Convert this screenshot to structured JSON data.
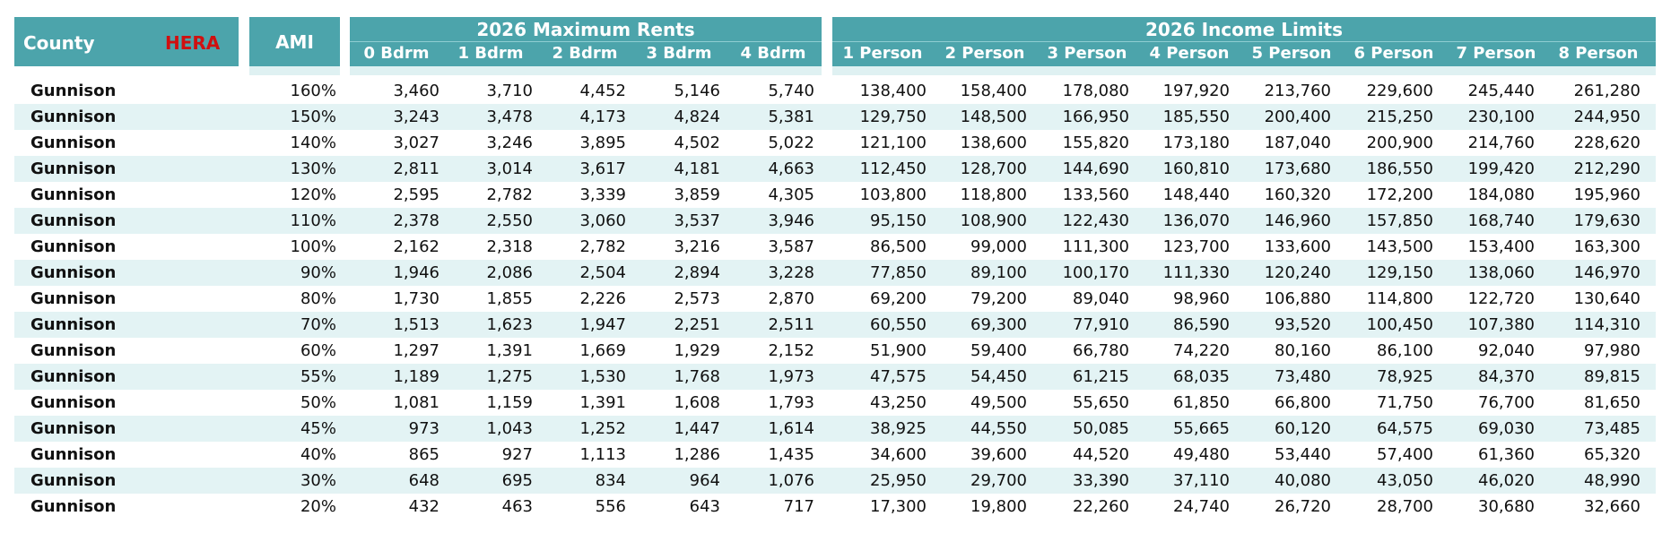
{
  "header": {
    "county_label": "County",
    "hera_label": "HERA",
    "ami_label": "AMI",
    "rents_title": "2026 Maximum Rents",
    "income_title": "2026 Income Limits",
    "rent_columns": [
      "0 Bdrm",
      "1 Bdrm",
      "2 Bdrm",
      "3 Bdrm",
      "4 Bdrm"
    ],
    "income_columns": [
      "1 Person",
      "2 Person",
      "3 Person",
      "4 Person",
      "5 Person",
      "6 Person",
      "7 Person",
      "8 Person"
    ]
  },
  "colors": {
    "header_bg": "#4ca4ab",
    "row_alt_bg": "#e3f3f4",
    "hera_text": "#d01010"
  },
  "rows": [
    {
      "county": "Gunnison",
      "ami": "160%",
      "rents": [
        "3,460",
        "3,710",
        "4,452",
        "5,146",
        "5,740"
      ],
      "income": [
        "138,400",
        "158,400",
        "178,080",
        "197,920",
        "213,760",
        "229,600",
        "245,440",
        "261,280"
      ]
    },
    {
      "county": "Gunnison",
      "ami": "150%",
      "rents": [
        "3,243",
        "3,478",
        "4,173",
        "4,824",
        "5,381"
      ],
      "income": [
        "129,750",
        "148,500",
        "166,950",
        "185,550",
        "200,400",
        "215,250",
        "230,100",
        "244,950"
      ]
    },
    {
      "county": "Gunnison",
      "ami": "140%",
      "rents": [
        "3,027",
        "3,246",
        "3,895",
        "4,502",
        "5,022"
      ],
      "income": [
        "121,100",
        "138,600",
        "155,820",
        "173,180",
        "187,040",
        "200,900",
        "214,760",
        "228,620"
      ]
    },
    {
      "county": "Gunnison",
      "ami": "130%",
      "rents": [
        "2,811",
        "3,014",
        "3,617",
        "4,181",
        "4,663"
      ],
      "income": [
        "112,450",
        "128,700",
        "144,690",
        "160,810",
        "173,680",
        "186,550",
        "199,420",
        "212,290"
      ]
    },
    {
      "county": "Gunnison",
      "ami": "120%",
      "rents": [
        "2,595",
        "2,782",
        "3,339",
        "3,859",
        "4,305"
      ],
      "income": [
        "103,800",
        "118,800",
        "133,560",
        "148,440",
        "160,320",
        "172,200",
        "184,080",
        "195,960"
      ]
    },
    {
      "county": "Gunnison",
      "ami": "110%",
      "rents": [
        "2,378",
        "2,550",
        "3,060",
        "3,537",
        "3,946"
      ],
      "income": [
        "95,150",
        "108,900",
        "122,430",
        "136,070",
        "146,960",
        "157,850",
        "168,740",
        "179,630"
      ]
    },
    {
      "county": "Gunnison",
      "ami": "100%",
      "rents": [
        "2,162",
        "2,318",
        "2,782",
        "3,216",
        "3,587"
      ],
      "income": [
        "86,500",
        "99,000",
        "111,300",
        "123,700",
        "133,600",
        "143,500",
        "153,400",
        "163,300"
      ]
    },
    {
      "county": "Gunnison",
      "ami": "90%",
      "rents": [
        "1,946",
        "2,086",
        "2,504",
        "2,894",
        "3,228"
      ],
      "income": [
        "77,850",
        "89,100",
        "100,170",
        "111,330",
        "120,240",
        "129,150",
        "138,060",
        "146,970"
      ]
    },
    {
      "county": "Gunnison",
      "ami": "80%",
      "rents": [
        "1,730",
        "1,855",
        "2,226",
        "2,573",
        "2,870"
      ],
      "income": [
        "69,200",
        "79,200",
        "89,040",
        "98,960",
        "106,880",
        "114,800",
        "122,720",
        "130,640"
      ]
    },
    {
      "county": "Gunnison",
      "ami": "70%",
      "rents": [
        "1,513",
        "1,623",
        "1,947",
        "2,251",
        "2,511"
      ],
      "income": [
        "60,550",
        "69,300",
        "77,910",
        "86,590",
        "93,520",
        "100,450",
        "107,380",
        "114,310"
      ]
    },
    {
      "county": "Gunnison",
      "ami": "60%",
      "rents": [
        "1,297",
        "1,391",
        "1,669",
        "1,929",
        "2,152"
      ],
      "income": [
        "51,900",
        "59,400",
        "66,780",
        "74,220",
        "80,160",
        "86,100",
        "92,040",
        "97,980"
      ]
    },
    {
      "county": "Gunnison",
      "ami": "55%",
      "rents": [
        "1,189",
        "1,275",
        "1,530",
        "1,768",
        "1,973"
      ],
      "income": [
        "47,575",
        "54,450",
        "61,215",
        "68,035",
        "73,480",
        "78,925",
        "84,370",
        "89,815"
      ]
    },
    {
      "county": "Gunnison",
      "ami": "50%",
      "rents": [
        "1,081",
        "1,159",
        "1,391",
        "1,608",
        "1,793"
      ],
      "income": [
        "43,250",
        "49,500",
        "55,650",
        "61,850",
        "66,800",
        "71,750",
        "76,700",
        "81,650"
      ]
    },
    {
      "county": "Gunnison",
      "ami": "45%",
      "rents": [
        "973",
        "1,043",
        "1,252",
        "1,447",
        "1,614"
      ],
      "income": [
        "38,925",
        "44,550",
        "50,085",
        "55,665",
        "60,120",
        "64,575",
        "69,030",
        "73,485"
      ]
    },
    {
      "county": "Gunnison",
      "ami": "40%",
      "rents": [
        "865",
        "927",
        "1,113",
        "1,286",
        "1,435"
      ],
      "income": [
        "34,600",
        "39,600",
        "44,520",
        "49,480",
        "53,440",
        "57,400",
        "61,360",
        "65,320"
      ]
    },
    {
      "county": "Gunnison",
      "ami": "30%",
      "rents": [
        "648",
        "695",
        "834",
        "964",
        "1,076"
      ],
      "income": [
        "25,950",
        "29,700",
        "33,390",
        "37,110",
        "40,080",
        "43,050",
        "46,020",
        "48,990"
      ]
    },
    {
      "county": "Gunnison",
      "ami": "20%",
      "rents": [
        "432",
        "463",
        "556",
        "643",
        "717"
      ],
      "income": [
        "17,300",
        "19,800",
        "22,260",
        "24,740",
        "26,720",
        "28,700",
        "30,680",
        "32,660"
      ]
    }
  ]
}
